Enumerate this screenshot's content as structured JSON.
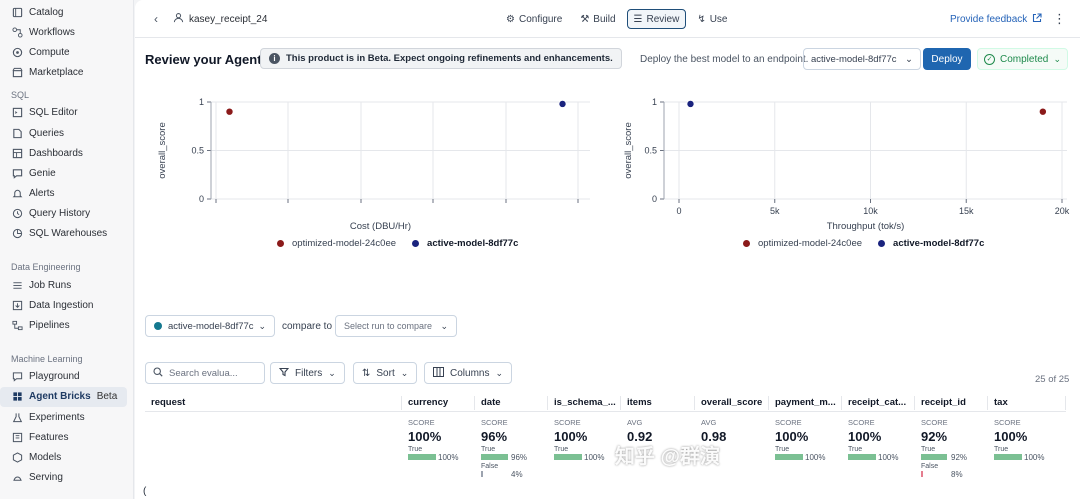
{
  "sidebar": {
    "top_items": [
      {
        "label": "Catalog",
        "icon": "catalog-icon"
      },
      {
        "label": "Workflows",
        "icon": "workflows-icon"
      },
      {
        "label": "Compute",
        "icon": "compute-icon"
      },
      {
        "label": "Marketplace",
        "icon": "marketplace-icon"
      }
    ],
    "sql_section": "SQL",
    "sql_items": [
      {
        "label": "SQL Editor"
      },
      {
        "label": "Queries"
      },
      {
        "label": "Dashboards"
      },
      {
        "label": "Genie"
      },
      {
        "label": "Alerts"
      },
      {
        "label": "Query History"
      },
      {
        "label": "SQL Warehouses"
      }
    ],
    "de_section": "Data Engineering",
    "de_items": [
      {
        "label": "Job Runs"
      },
      {
        "label": "Data Ingestion"
      },
      {
        "label": "Pipelines"
      }
    ],
    "ml_section": "Machine Learning",
    "ml_items": [
      {
        "label": "Playground"
      },
      {
        "label": "Agent Bricks",
        "badge": "Beta"
      },
      {
        "label": "Experiments"
      },
      {
        "label": "Features"
      },
      {
        "label": "Models"
      },
      {
        "label": "Serving"
      }
    ]
  },
  "header": {
    "agent_name": "kasey_receipt_24",
    "tabs": [
      {
        "label": "Configure"
      },
      {
        "label": "Build"
      },
      {
        "label": "Review"
      },
      {
        "label": "Use"
      }
    ],
    "feedback": "Provide feedback"
  },
  "review": {
    "title": "Review your Agent",
    "beta_banner": "This product is in Beta. Expect ongoing refinements and enhancements.",
    "deploy_text": "Deploy the best model to an endpoint.",
    "selected_model": "active-model-8df77c",
    "deploy_button": "Deploy",
    "status": "Completed"
  },
  "chart_data": [
    {
      "type": "scatter",
      "xlabel": "Cost (DBU/Hr)",
      "ylabel": "overall_score",
      "ylim": [
        0,
        1
      ],
      "yticks": [
        "0",
        "0.5",
        "1"
      ],
      "grid": true,
      "series": [
        {
          "name": "optimized-model-24c0ee",
          "color": "#8b1a1a",
          "points": [
            [
              0.04,
              0.9
            ]
          ]
        },
        {
          "name": "active-model-8df77c",
          "color": "#1a237e",
          "points": [
            [
              0.96,
              0.98
            ]
          ]
        }
      ]
    },
    {
      "type": "scatter",
      "xlabel": "Throughput (tok/s)",
      "ylabel": "overall_score",
      "xlim": [
        0,
        20000
      ],
      "ylim": [
        0,
        1
      ],
      "xticks": [
        "0",
        "5k",
        "10k",
        "15k",
        "20k"
      ],
      "yticks": [
        "0",
        "0.5",
        "1"
      ],
      "grid": true,
      "series": [
        {
          "name": "optimized-model-24c0ee",
          "color": "#8b1a1a",
          "points": [
            [
              19000,
              0.9
            ]
          ]
        },
        {
          "name": "active-model-8df77c",
          "color": "#1a237e",
          "points": [
            [
              600,
              0.98
            ]
          ]
        }
      ]
    }
  ],
  "compare": {
    "run": "active-model-8df77c",
    "label": "compare to",
    "placeholder": "Select run to compare"
  },
  "toolbar": {
    "search_placeholder": "Search evalua...",
    "filters": "Filters",
    "sort": "Sort",
    "columns": "Columns",
    "count": "25 of 25"
  },
  "table": {
    "request_header": "request",
    "columns": [
      {
        "header": "currency",
        "kind": "SCORE",
        "value": "100%",
        "bars": [
          {
            "label": "True",
            "pct": "100%",
            "frac": 1.0,
            "color": "green"
          }
        ]
      },
      {
        "header": "date",
        "kind": "SCORE",
        "value": "96%",
        "bars": [
          {
            "label": "True",
            "pct": "96%",
            "frac": 0.96,
            "color": "green"
          },
          {
            "label": "False",
            "pct": "4%",
            "frac": 0.04,
            "color": "gray"
          }
        ]
      },
      {
        "header": "is_schema_...",
        "kind": "SCORE",
        "value": "100%",
        "bars": [
          {
            "label": "True",
            "pct": "100%",
            "frac": 1.0,
            "color": "green"
          }
        ]
      },
      {
        "header": "items",
        "kind": "AVG",
        "value": "0.92",
        "bars": []
      },
      {
        "header": "overall_score",
        "kind": "AVG",
        "value": "0.98",
        "bars": []
      },
      {
        "header": "payment_m...",
        "kind": "SCORE",
        "value": "100%",
        "bars": [
          {
            "label": "True",
            "pct": "100%",
            "frac": 1.0,
            "color": "green"
          }
        ]
      },
      {
        "header": "receipt_cat...",
        "kind": "SCORE",
        "value": "100%",
        "bars": [
          {
            "label": "True",
            "pct": "100%",
            "frac": 1.0,
            "color": "green"
          }
        ]
      },
      {
        "header": "receipt_id",
        "kind": "SCORE",
        "value": "92%",
        "bars": [
          {
            "label": "True",
            "pct": "92%",
            "frac": 0.92,
            "color": "green"
          },
          {
            "label": "False",
            "pct": "8%",
            "frac": 0.08,
            "color": "red"
          }
        ]
      },
      {
        "header": "tax",
        "kind": "SCORE",
        "value": "100%",
        "bars": [
          {
            "label": "True",
            "pct": "100%",
            "frac": 1.0,
            "color": "green"
          }
        ]
      }
    ]
  },
  "watermark": "知乎 @群演"
}
